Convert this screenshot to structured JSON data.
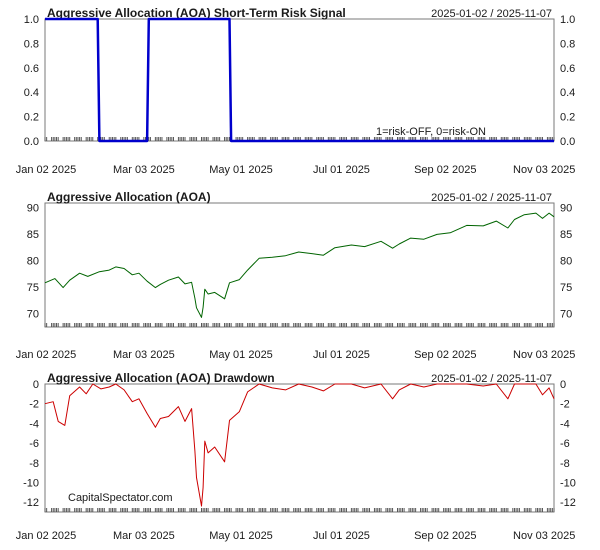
{
  "watermark": "CapitalSpectator.com",
  "chart_data": [
    {
      "type": "line",
      "title": "Aggressive Allocation (AOA) Short-Term Risk Signal",
      "date_range": "2025-01-02 / 2025-11-07",
      "annotation": "1=risk-OFF, 0=risk-ON",
      "color": "#0000cc",
      "ylim": [
        0,
        1
      ],
      "yticks": [
        "1.0",
        "0.8",
        "0.6",
        "0.4",
        "0.2",
        "0.0"
      ],
      "xticks": [
        "Jan 02 2025",
        "Mar 03 2025",
        "May 01 2025",
        "Jul 01 2025",
        "Sep 02 2025",
        "Nov 03 2025"
      ],
      "series": [
        {
          "x": [
            "2025-01-02",
            "2025-02-03",
            "2025-02-04",
            "2025-03-05",
            "2025-03-06",
            "2025-04-24",
            "2025-04-25",
            "2025-11-07"
          ],
          "values": [
            1,
            1,
            0,
            0,
            1,
            1,
            0,
            0
          ]
        }
      ]
    },
    {
      "type": "line",
      "title": "Aggressive Allocation (AOA)",
      "date_range": "2025-01-02 / 2025-11-07",
      "color": "#006400",
      "ylim": [
        67.5,
        90.8
      ],
      "yticks": [
        "90",
        "85",
        "80",
        "75",
        "70"
      ],
      "xticks": [
        "Jan 02 2025",
        "Mar 03 2025",
        "May 01 2025",
        "Jul 01 2025",
        "Sep 02 2025",
        "Nov 03 2025"
      ],
      "series": [
        {
          "x": [
            "2025-01-02",
            "2025-01-08",
            "2025-01-13",
            "2025-01-17",
            "2025-01-23",
            "2025-01-28",
            "2025-02-04",
            "2025-02-10",
            "2025-02-14",
            "2025-02-19",
            "2025-02-24",
            "2025-02-28",
            "2025-03-05",
            "2025-03-10",
            "2025-03-13",
            "2025-03-18",
            "2025-03-24",
            "2025-03-28",
            "2025-04-01",
            "2025-04-03",
            "2025-04-04",
            "2025-04-07",
            "2025-04-08",
            "2025-04-09",
            "2025-04-11",
            "2025-04-15",
            "2025-04-21",
            "2025-04-24",
            "2025-04-30",
            "2025-05-05",
            "2025-05-12",
            "2025-05-20",
            "2025-05-28",
            "2025-06-05",
            "2025-06-13",
            "2025-06-20",
            "2025-06-27",
            "2025-07-07",
            "2025-07-15",
            "2025-07-25",
            "2025-08-01",
            "2025-08-05",
            "2025-08-12",
            "2025-08-20",
            "2025-08-28",
            "2025-09-05",
            "2025-09-15",
            "2025-09-25",
            "2025-10-03",
            "2025-10-10",
            "2025-10-14",
            "2025-10-20",
            "2025-10-27",
            "2025-10-31",
            "2025-11-04",
            "2025-11-07"
          ],
          "values": [
            75.8,
            76.6,
            74.9,
            76.3,
            77.6,
            77.0,
            77.9,
            78.2,
            78.8,
            78.5,
            77.3,
            77.6,
            76.1,
            74.9,
            75.5,
            76.3,
            76.9,
            75.6,
            75.9,
            72.9,
            71.1,
            69.3,
            71.2,
            74.6,
            73.7,
            74.0,
            72.8,
            75.8,
            76.4,
            78.2,
            80.4,
            80.6,
            80.9,
            81.6,
            81.3,
            81.0,
            82.4,
            82.9,
            82.6,
            83.6,
            82.3,
            83.1,
            84.2,
            84.0,
            84.9,
            85.2,
            86.6,
            86.5,
            87.4,
            86.1,
            87.7,
            88.6,
            88.9,
            87.9,
            88.9,
            88.2
          ]
        }
      ]
    },
    {
      "type": "line",
      "title": "Aggressive Allocation (AOA) Drawdown",
      "date_range": "2025-01-02 / 2025-11-07",
      "color": "#cc0000",
      "ylim": [
        -13,
        0
      ],
      "yticks": [
        "0",
        "-2",
        "-4",
        "-6",
        "-8",
        "-10",
        "-12"
      ],
      "xticks": [
        "Jan 02 2025",
        "Mar 03 2025",
        "May 01 2025",
        "Jul 01 2025",
        "Sep 02 2025",
        "Nov 03 2025"
      ],
      "series": [
        {
          "x": [
            "2025-01-02",
            "2025-01-07",
            "2025-01-10",
            "2025-01-14",
            "2025-01-17",
            "2025-01-23",
            "2025-01-27",
            "2025-01-31",
            "2025-02-05",
            "2025-02-10",
            "2025-02-14",
            "2025-02-19",
            "2025-02-24",
            "2025-02-28",
            "2025-03-05",
            "2025-03-10",
            "2025-03-13",
            "2025-03-18",
            "2025-03-24",
            "2025-03-28",
            "2025-04-01",
            "2025-04-03",
            "2025-04-04",
            "2025-04-07",
            "2025-04-08",
            "2025-04-09",
            "2025-04-11",
            "2025-04-15",
            "2025-04-21",
            "2025-04-24",
            "2025-04-30",
            "2025-05-05",
            "2025-05-12",
            "2025-05-20",
            "2025-05-28",
            "2025-06-05",
            "2025-06-13",
            "2025-06-20",
            "2025-06-27",
            "2025-07-07",
            "2025-07-15",
            "2025-07-25",
            "2025-08-01",
            "2025-08-05",
            "2025-08-12",
            "2025-08-20",
            "2025-08-28",
            "2025-09-05",
            "2025-09-15",
            "2025-09-25",
            "2025-10-03",
            "2025-10-10",
            "2025-10-14",
            "2025-10-20",
            "2025-10-27",
            "2025-10-31",
            "2025-11-04",
            "2025-11-07"
          ],
          "values": [
            -2.0,
            -1.8,
            -3.8,
            -4.2,
            -1.2,
            -0.3,
            -1.0,
            0,
            -0.5,
            -0.3,
            0,
            -0.6,
            -1.8,
            -1.5,
            -3.0,
            -4.4,
            -3.5,
            -3.3,
            -2.3,
            -3.8,
            -2.5,
            -6.8,
            -9.5,
            -12.4,
            -10.5,
            -5.8,
            -7.0,
            -6.4,
            -7.9,
            -3.7,
            -2.8,
            -0.8,
            0,
            -0.4,
            -0.6,
            0,
            -0.3,
            -0.7,
            0,
            0,
            -0.4,
            0,
            -1.5,
            -0.6,
            0,
            -0.3,
            0,
            0,
            0,
            -0.2,
            0,
            -1.5,
            0,
            0,
            0,
            -1.1,
            -0.4,
            -1.5
          ]
        }
      ]
    }
  ]
}
